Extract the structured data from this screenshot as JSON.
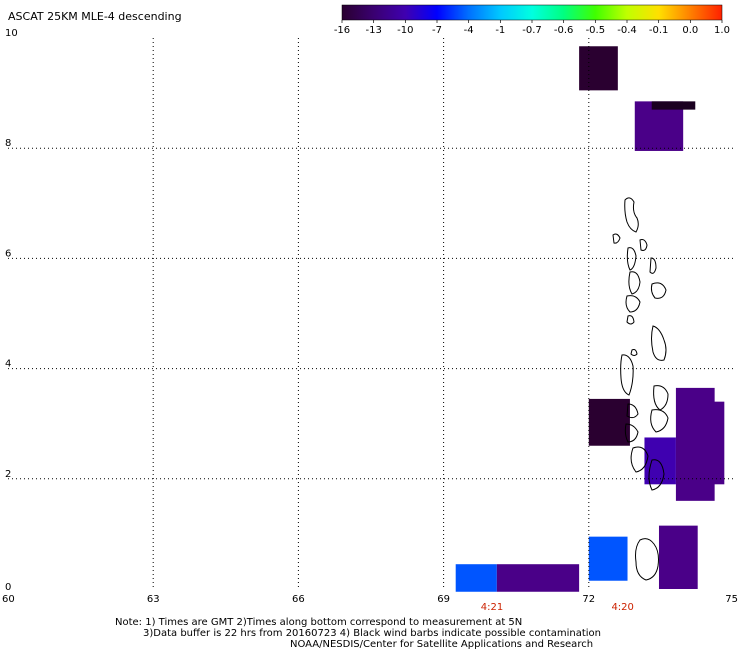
{
  "title": "ASCAT 25KM MLE-4 descending",
  "colorbar": {
    "labels": [
      "-16",
      "-13",
      "-10",
      "-7",
      "-4",
      "-1",
      "-0.7",
      "-0.6",
      "-0.5",
      "-0.4",
      "-0.1",
      "0.0",
      "1.0"
    ],
    "colors": [
      "#2a0030",
      "#3a0070",
      "#3f00b0",
      "#0000ff",
      "#0070ff",
      "#00c8ff",
      "#00ffe0",
      "#00ff80",
      "#40ff00",
      "#c0ff00",
      "#ffe000",
      "#ff8000",
      "#ff2000"
    ]
  },
  "axes": {
    "x_range": [
      60,
      75
    ],
    "y_range": [
      0,
      10
    ],
    "x_ticks": [
      "60",
      "63",
      "66",
      "69",
      "72",
      "75"
    ],
    "x_tick_values": [
      60,
      63,
      66,
      69,
      72,
      75
    ],
    "y_ticks": [
      "0",
      "2",
      "4",
      "6",
      "8",
      "10"
    ],
    "y_tick_values": [
      0,
      2,
      4,
      6,
      8,
      10
    ],
    "grid_x": [
      63,
      66,
      69,
      72
    ],
    "grid_y": [
      2,
      4,
      6,
      8
    ]
  },
  "time_labels": [
    {
      "text": "4:21",
      "lon": 70.0
    },
    {
      "text": "4:20",
      "lon": 72.7
    }
  ],
  "swath_cells": [
    {
      "lon0": 71.8,
      "lon1": 72.6,
      "lat0": 9.05,
      "lat1": 9.85,
      "color": "#2a0030"
    },
    {
      "lon0": 72.95,
      "lon1": 73.95,
      "lat0": 7.95,
      "lat1": 8.85,
      "color": "#4a0088"
    },
    {
      "lon0": 73.3,
      "lon1": 74.2,
      "lat0": 8.7,
      "lat1": 8.85,
      "color": "#1a0020"
    },
    {
      "lon0": 72.0,
      "lon1": 72.85,
      "lat0": 2.6,
      "lat1": 3.45,
      "color": "#2a0030"
    },
    {
      "lon0": 73.8,
      "lon1": 74.6,
      "lat0": 1.6,
      "lat1": 3.65,
      "color": "#4a0088"
    },
    {
      "lon0": 74.5,
      "lon1": 74.8,
      "lat0": 1.9,
      "lat1": 3.4,
      "color": "#4a0088"
    },
    {
      "lon0": 73.15,
      "lon1": 73.8,
      "lat0": 1.9,
      "lat1": 2.75,
      "color": "#3f00b0"
    },
    {
      "lon0": 73.45,
      "lon1": 74.25,
      "lat0": 0.0,
      "lat1": 1.15,
      "color": "#4a0088"
    },
    {
      "lon0": 72.0,
      "lon1": 72.8,
      "lat0": 0.15,
      "lat1": 0.95,
      "color": "#0055ff"
    },
    {
      "lon0": 69.25,
      "lon1": 70.1,
      "lat0": -0.05,
      "lat1": 0.45,
      "color": "#0055ff"
    },
    {
      "lon0": 70.1,
      "lon1": 71.8,
      "lat0": -0.05,
      "lat1": 0.45,
      "color": "#4a0088"
    }
  ],
  "notes": [
    "Note: 1) Times are GMT 2)Times along bottom correspond to measurement at 5N",
    "3)Data buffer is 22 hrs from 20160723 4) Black wind barbs indicate possible contamination",
    "NOAA/NESDIS/Center for Satellite Applications and Research"
  ]
}
